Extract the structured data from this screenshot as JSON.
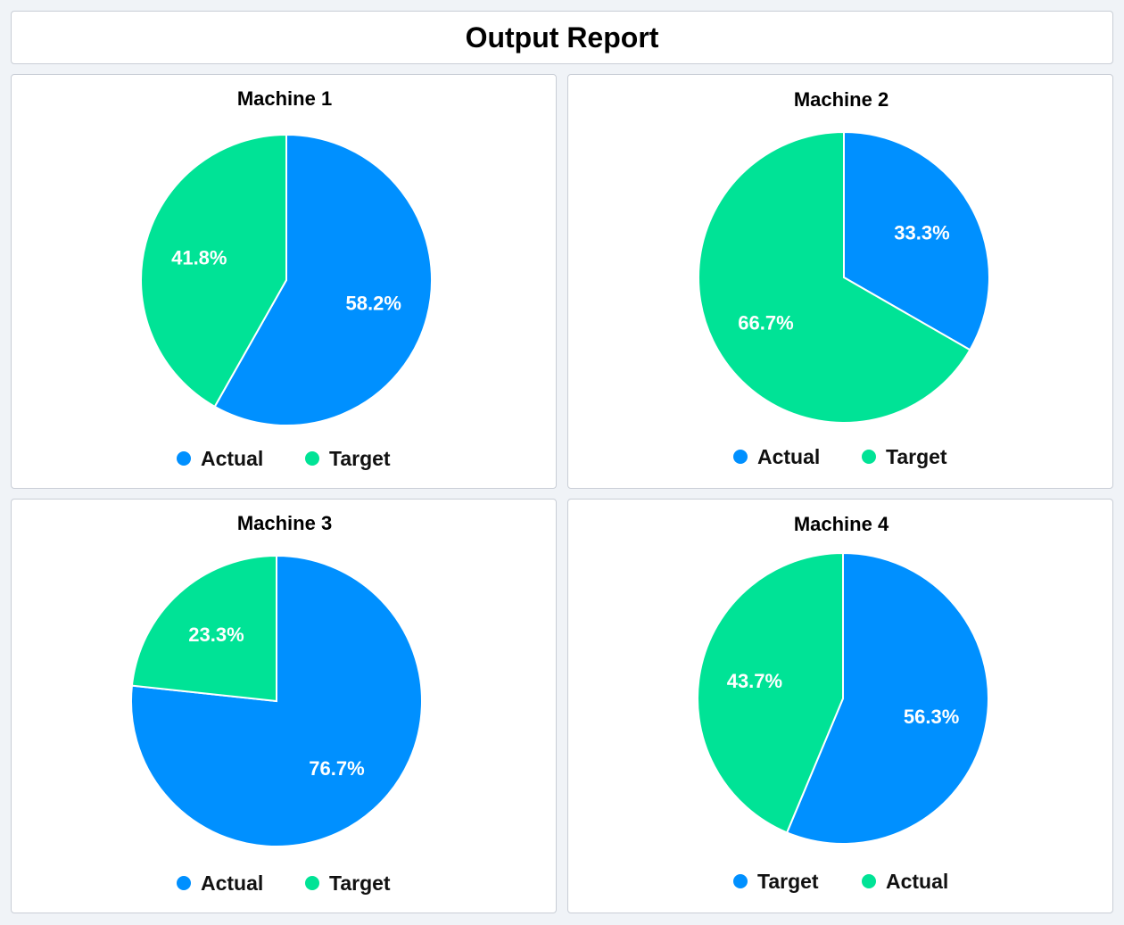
{
  "report": {
    "title": "Output Report"
  },
  "colors": {
    "blue": "#0090ff",
    "green": "#00e396"
  },
  "chart_data": [
    {
      "type": "pie",
      "title": "Machine 1",
      "slices": [
        {
          "label": "Actual",
          "value": 58.2,
          "display": "58.2%",
          "color": "#0090ff"
        },
        {
          "label": "Target",
          "value": 41.8,
          "display": "41.8%",
          "color": "#00e396"
        }
      ],
      "legend": [
        {
          "label": "Actual",
          "color": "#0090ff"
        },
        {
          "label": "Target",
          "color": "#00e396"
        }
      ]
    },
    {
      "type": "pie",
      "title": "Machine 2",
      "slices": [
        {
          "label": "Actual",
          "value": 33.3,
          "display": "33.3%",
          "color": "#0090ff"
        },
        {
          "label": "Target",
          "value": 66.7,
          "display": "66.7%",
          "color": "#00e396"
        }
      ],
      "legend": [
        {
          "label": "Actual",
          "color": "#0090ff"
        },
        {
          "label": "Target",
          "color": "#00e396"
        }
      ]
    },
    {
      "type": "pie",
      "title": "Machine 3",
      "slices": [
        {
          "label": "Actual",
          "value": 76.7,
          "display": "76.7%",
          "color": "#0090ff"
        },
        {
          "label": "Target",
          "value": 23.3,
          "display": "23.3%",
          "color": "#00e396"
        }
      ],
      "legend": [
        {
          "label": "Actual",
          "color": "#0090ff"
        },
        {
          "label": "Target",
          "color": "#00e396"
        }
      ]
    },
    {
      "type": "pie",
      "title": "Machine 4",
      "slices": [
        {
          "label": "Target",
          "value": 56.3,
          "display": "56.3%",
          "color": "#0090ff"
        },
        {
          "label": "Actual",
          "value": 43.7,
          "display": "43.7%",
          "color": "#00e396"
        }
      ],
      "legend": [
        {
          "label": "Target",
          "color": "#0090ff"
        },
        {
          "label": "Actual",
          "color": "#00e396"
        }
      ]
    }
  ]
}
